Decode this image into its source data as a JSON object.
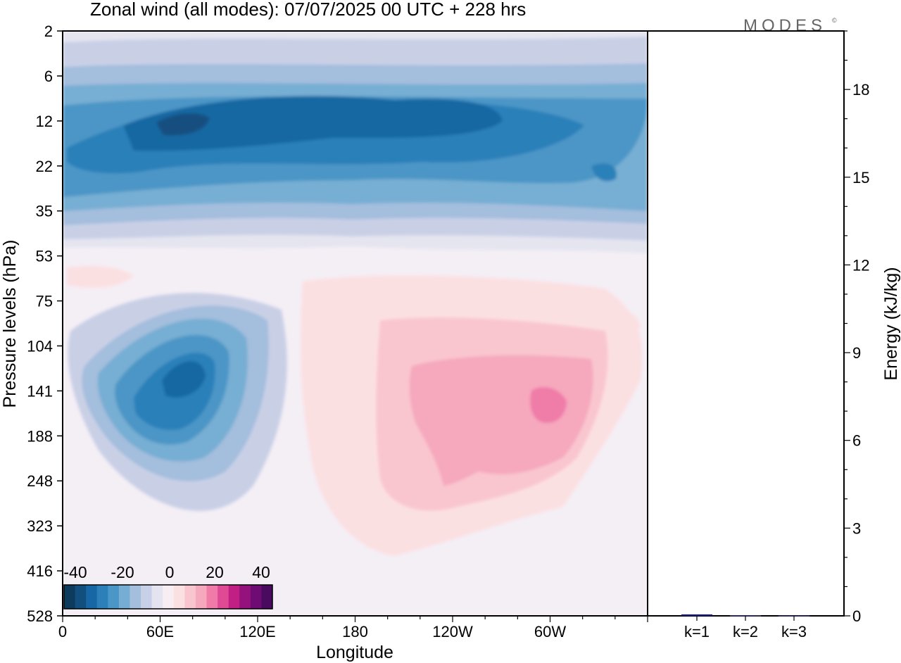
{
  "title": "Zonal wind (all modes):  07/07/2025  00 UTC  + 228 hrs",
  "logo_text": "MODES",
  "chart_data": [
    {
      "type": "heatmap",
      "xlabel": "Longitude",
      "ylabel": "Pressure levels (hPa)",
      "x_ticks": [
        "0",
        "60E",
        "120E",
        "180",
        "120W",
        "60W"
      ],
      "y_ticks": [
        "2",
        "6",
        "12",
        "22",
        "35",
        "53",
        "75",
        "104",
        "141",
        "188",
        "248",
        "323",
        "416",
        "528"
      ],
      "colorbar": {
        "ticks": [
          "-40",
          "-20",
          "0",
          "20",
          "40"
        ],
        "colors": [
          "#0d3b5e",
          "#124f7f",
          "#1667a3",
          "#2b80b9",
          "#4a96c6",
          "#76aed3",
          "#a3bfdd",
          "#c7d0e6",
          "#e4e4f0",
          "#f7eef3",
          "#fbe0e2",
          "#f9c6cf",
          "#f6a8bd",
          "#f07ba8",
          "#e04a95",
          "#c21f85",
          "#95117b",
          "#6e0c73",
          "#4a0a60"
        ]
      },
      "wind_features": [
        {
          "name": "upper easterly belt",
          "level_range_hPa": [
            8,
            30
          ],
          "lon_range": [
            "0",
            "360"
          ],
          "approx_min_ms": -35
        },
        {
          "name": "lower easterly core",
          "level_range_hPa": [
            104,
            188
          ],
          "lon_center": "75E",
          "approx_min_ms": -30
        },
        {
          "name": "westerly region",
          "level_range_hPa": [
            90,
            350
          ],
          "lon_range": [
            "150E",
            "70W"
          ],
          "approx_max_ms": 15
        }
      ]
    },
    {
      "type": "bar",
      "ylabel": "Energy (kJ/kg)",
      "categories": [
        "k=1",
        "k=2",
        "k=3"
      ],
      "values": [
        0.05,
        0.02,
        0.01
      ],
      "ylim": [
        0,
        20
      ],
      "y_ticks": [
        "0",
        "3",
        "6",
        "9",
        "12",
        "15",
        "18"
      ]
    }
  ]
}
